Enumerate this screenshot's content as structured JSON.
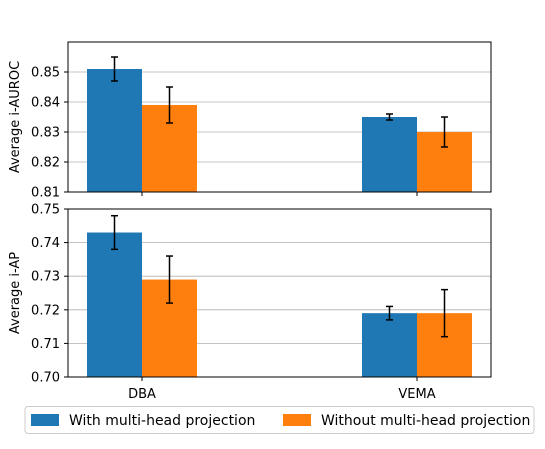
{
  "chart_data": [
    {
      "type": "bar",
      "categories": [
        "DBA",
        "VEMA"
      ],
      "ylabel": "Average i-AUROC",
      "xlabel": "",
      "ylim": [
        0.81,
        0.86
      ],
      "yticks": [
        "0.81",
        "0.82",
        "0.83",
        "0.84",
        "0.85"
      ],
      "ytick_values": [
        0.81,
        0.82,
        0.83,
        0.84,
        0.85
      ],
      "show_xtick_labels": false,
      "grid": "y",
      "series": [
        {
          "name": "With multi-head projection",
          "color": "#1f77b4",
          "values": [
            0.851,
            0.835
          ],
          "errors": [
            0.004,
            0.001
          ]
        },
        {
          "name": "Without multi-head projection",
          "color": "#ff7f0e",
          "values": [
            0.839,
            0.83
          ],
          "errors": [
            0.006,
            0.005
          ]
        }
      ]
    },
    {
      "type": "bar",
      "categories": [
        "DBA",
        "VEMA"
      ],
      "ylabel": "Average i-AP",
      "xlabel": "",
      "ylim": [
        0.7,
        0.75
      ],
      "yticks": [
        "0.70",
        "0.71",
        "0.72",
        "0.73",
        "0.74",
        "0.75"
      ],
      "ytick_values": [
        0.7,
        0.71,
        0.72,
        0.73,
        0.74,
        0.75
      ],
      "show_xtick_labels": true,
      "grid": "y",
      "series": [
        {
          "name": "With multi-head projection",
          "color": "#1f77b4",
          "values": [
            0.743,
            0.719
          ],
          "errors": [
            0.005,
            0.002
          ]
        },
        {
          "name": "Without multi-head projection",
          "color": "#ff7f0e",
          "values": [
            0.729,
            0.719
          ],
          "errors": [
            0.007,
            0.007
          ]
        }
      ]
    }
  ],
  "legend": {
    "placement": "bottom-center",
    "entries": [
      {
        "label": "With multi-head projection",
        "color": "#1f77b4"
      },
      {
        "label": "Without multi-head projection",
        "color": "#ff7f0e"
      }
    ]
  }
}
